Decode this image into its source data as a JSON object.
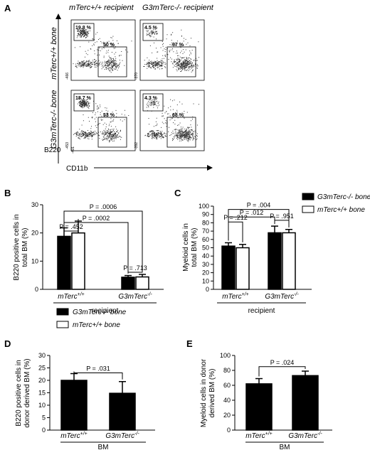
{
  "panel_letters": {
    "a": "A",
    "b": "B",
    "c": "C",
    "d": "D",
    "e": "E"
  },
  "flow": {
    "col_headers": [
      "mTerc+/+ recipient",
      "G3mTerc-/- recipient"
    ],
    "row_labels": [
      "mTerc+/+ bone",
      "G3mTerc-/- bone"
    ],
    "y_axis": "B220",
    "x_axis": "CD11b",
    "plots": [
      {
        "b220_pct": "19.8 %",
        "myeloid_pct": "50 %"
      },
      {
        "b220_pct": "4.5 %",
        "myeloid_pct": "67 %"
      },
      {
        "b220_pct": "18.7 %",
        "myeloid_pct": "53 %"
      },
      {
        "b220_pct": "4.3 %",
        "myeloid_pct": "68 %"
      }
    ],
    "tick_labels": [
      "-466",
      "-370",
      "-453",
      "-392",
      "-401"
    ]
  },
  "legend": {
    "g3": "G3mTerc-/- bone",
    "mterc": "mTerc+/+ bone",
    "g3_color": "#000000",
    "mterc_color": "#ffffff"
  },
  "chart_data": [
    {
      "panel": "B",
      "type": "bar",
      "ylabel": "B220 positive cells in total BM (%)",
      "ylim": [
        0,
        30
      ],
      "yticks": [
        0,
        10,
        20,
        30
      ],
      "categories": [
        "mTerc+/+",
        "G3mTerc-/-"
      ],
      "group_axis_label": "recipient",
      "series": [
        {
          "name": "G3mTerc-/- bone",
          "values": [
            18.8,
            4.3
          ],
          "errors": [
            3.0,
            0.6
          ],
          "fill": "#000000"
        },
        {
          "name": "mTerc+/+ bone",
          "values": [
            20.0,
            4.4
          ],
          "errors": [
            4.2,
            0.9
          ],
          "fill": "#ffffff"
        }
      ],
      "annotations": [
        "P = .452",
        "P = .0002",
        "P = .0006",
        "P = .713"
      ]
    },
    {
      "panel": "C",
      "type": "bar",
      "ylabel": "Myeloid cells in total BM (%)",
      "ylim": [
        0,
        100
      ],
      "yticks": [
        0,
        10,
        20,
        30,
        40,
        50,
        60,
        70,
        80,
        90,
        100
      ],
      "categories": [
        "mTerc+/+",
        "G3mTerc-/-"
      ],
      "group_axis_label": "recipient",
      "series": [
        {
          "name": "G3mTerc-/- bone",
          "values": [
            52,
            68
          ],
          "errors": [
            4,
            8
          ],
          "fill": "#000000"
        },
        {
          "name": "mTerc+/+ bone",
          "values": [
            50,
            68
          ],
          "errors": [
            4,
            4
          ],
          "fill": "#ffffff"
        }
      ],
      "annotations": [
        "P = .212",
        "P = .012",
        "P = .004",
        "P = .951"
      ]
    },
    {
      "panel": "D",
      "type": "bar",
      "ylabel": "B220 positive cells in donor derived BM (%)",
      "ylim": [
        0,
        30
      ],
      "yticks": [
        0,
        5,
        10,
        15,
        20,
        25,
        30
      ],
      "categories": [
        "mTerc+/+",
        "G3mTerc-/-"
      ],
      "group_axis_label": "BM",
      "values": [
        20,
        14.8
      ],
      "errors": [
        2.7,
        4.7
      ],
      "fill": "#000000",
      "annotations": [
        "P = .031"
      ]
    },
    {
      "panel": "E",
      "type": "bar",
      "ylabel": "Myeloid cells in donor derived BM (%)",
      "ylim": [
        0,
        100
      ],
      "yticks": [
        0,
        20,
        40,
        60,
        80,
        100
      ],
      "categories": [
        "mTerc+/+",
        "G3mTerc-/-"
      ],
      "group_axis_label": "BM",
      "values": [
        62,
        73
      ],
      "errors": [
        7,
        6
      ],
      "fill": "#000000",
      "annotations": [
        "P = .024"
      ]
    }
  ]
}
